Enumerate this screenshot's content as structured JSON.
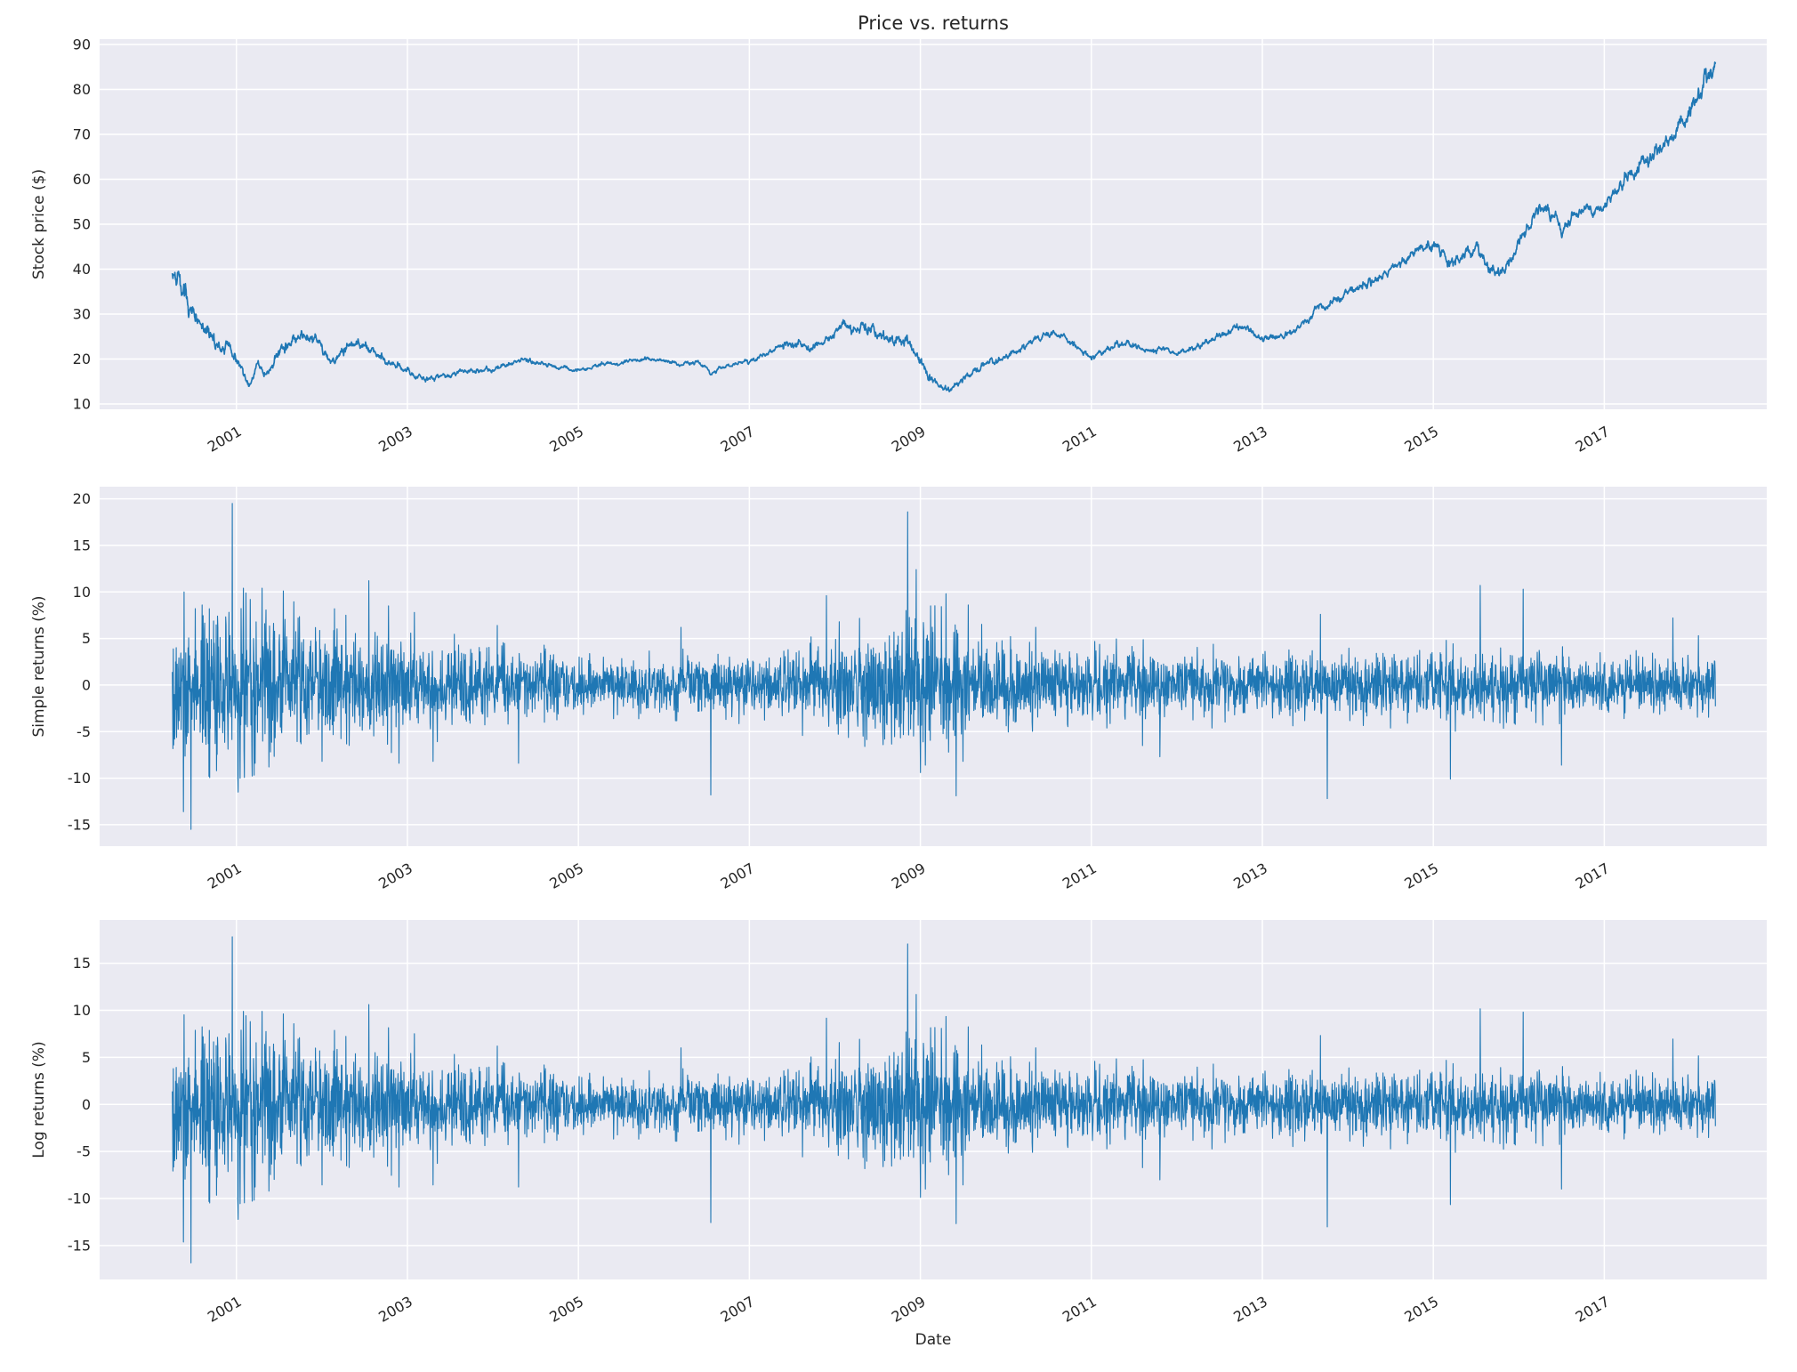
{
  "figure": {
    "title": "Price vs. returns",
    "xlabel": "Date",
    "colors": {
      "figure_background": "#ffffff",
      "axes_background": "#eaeaf2",
      "grid": "#ffffff",
      "line": "#1f77b4",
      "text": "#262626"
    }
  },
  "chart_data": [
    {
      "id": "price",
      "type": "line",
      "title": "Price vs. returns",
      "ylabel": "Stock price ($)",
      "xlim": [
        1999.4,
        2018.9
      ],
      "ylim": [
        8.8,
        91.2
      ],
      "x_ticks": [
        2001,
        2003,
        2005,
        2007,
        2009,
        2011,
        2013,
        2015,
        2017
      ],
      "x_tick_labels": [
        "2001",
        "2003",
        "2005",
        "2007",
        "2009",
        "2011",
        "2013",
        "2015",
        "2017"
      ],
      "x_tick_rotation": 30,
      "y_ticks": [
        10,
        20,
        30,
        40,
        50,
        60,
        70,
        80,
        90
      ],
      "grid": true,
      "legend": "none",
      "series": [
        {
          "name": "Stock price",
          "color": "#1f77b4",
          "anchors": [
            [
              2000.25,
              38.5
            ],
            [
              2000.35,
              35.5
            ],
            [
              2000.5,
              30
            ],
            [
              2000.6,
              26.5
            ],
            [
              2000.75,
              24.5
            ],
            [
              2000.9,
              22.5
            ],
            [
              2001.0,
              20.5
            ],
            [
              2001.1,
              15.5
            ],
            [
              2001.15,
              14
            ],
            [
              2001.25,
              18.5
            ],
            [
              2001.35,
              16.5
            ],
            [
              2001.45,
              20
            ],
            [
              2001.55,
              22.5
            ],
            [
              2001.7,
              24.5
            ],
            [
              2001.8,
              25
            ],
            [
              2001.95,
              23.5
            ],
            [
              2002.1,
              18.5
            ],
            [
              2002.2,
              21
            ],
            [
              2002.3,
              23
            ],
            [
              2002.45,
              23.5
            ],
            [
              2002.6,
              21.5
            ],
            [
              2002.75,
              19
            ],
            [
              2002.9,
              18.5
            ],
            [
              2003.0,
              17
            ],
            [
              2003.2,
              15.5
            ],
            [
              2003.4,
              16
            ],
            [
              2003.6,
              17
            ],
            [
              2003.8,
              17.5
            ],
            [
              2004.0,
              17.5
            ],
            [
              2004.2,
              19
            ],
            [
              2004.4,
              20
            ],
            [
              2004.6,
              19
            ],
            [
              2004.8,
              18
            ],
            [
              2005.0,
              17.5
            ],
            [
              2005.2,
              18.5
            ],
            [
              2005.4,
              19
            ],
            [
              2005.6,
              19.5
            ],
            [
              2005.8,
              20
            ],
            [
              2006.0,
              19.5
            ],
            [
              2006.2,
              18.5
            ],
            [
              2006.4,
              19.5
            ],
            [
              2006.55,
              17
            ],
            [
              2006.7,
              18
            ],
            [
              2006.85,
              19
            ],
            [
              2007.0,
              19.5
            ],
            [
              2007.2,
              21
            ],
            [
              2007.4,
              23
            ],
            [
              2007.55,
              23.5
            ],
            [
              2007.7,
              22.5
            ],
            [
              2007.85,
              24
            ],
            [
              2008.0,
              25.5
            ],
            [
              2008.1,
              28.5
            ],
            [
              2008.25,
              26
            ],
            [
              2008.4,
              27.5
            ],
            [
              2008.55,
              25
            ],
            [
              2008.7,
              24.5
            ],
            [
              2008.85,
              23.5
            ],
            [
              2009.0,
              19.5
            ],
            [
              2009.1,
              16
            ],
            [
              2009.25,
              14
            ],
            [
              2009.35,
              13
            ],
            [
              2009.5,
              15.5
            ],
            [
              2009.65,
              17.5
            ],
            [
              2009.8,
              19
            ],
            [
              2010.0,
              20.5
            ],
            [
              2010.2,
              22.5
            ],
            [
              2010.4,
              25
            ],
            [
              2010.55,
              26
            ],
            [
              2010.7,
              24.5
            ],
            [
              2010.85,
              22.5
            ],
            [
              2011.0,
              20.5
            ],
            [
              2011.2,
              22.5
            ],
            [
              2011.4,
              23.5
            ],
            [
              2011.55,
              22.5
            ],
            [
              2011.7,
              21.5
            ],
            [
              2011.85,
              22.5
            ],
            [
              2012.0,
              21
            ],
            [
              2012.2,
              22.5
            ],
            [
              2012.4,
              24
            ],
            [
              2012.55,
              25.5
            ],
            [
              2012.7,
              27
            ],
            [
              2012.85,
              26.5
            ],
            [
              2013.0,
              24.5
            ],
            [
              2013.2,
              25
            ],
            [
              2013.4,
              26.5
            ],
            [
              2013.55,
              29
            ],
            [
              2013.65,
              32
            ],
            [
              2013.75,
              31.5
            ],
            [
              2013.85,
              33
            ],
            [
              2014.0,
              34.5
            ],
            [
              2014.2,
              36.5
            ],
            [
              2014.4,
              38.5
            ],
            [
              2014.6,
              41
            ],
            [
              2014.8,
              43.5
            ],
            [
              2015.0,
              46
            ],
            [
              2015.1,
              44
            ],
            [
              2015.2,
              40.5
            ],
            [
              2015.35,
              43.5
            ],
            [
              2015.5,
              45
            ],
            [
              2015.65,
              40
            ],
            [
              2015.8,
              38.5
            ],
            [
              2015.95,
              44
            ],
            [
              2016.1,
              49
            ],
            [
              2016.25,
              53.5
            ],
            [
              2016.4,
              52
            ],
            [
              2016.5,
              48.5
            ],
            [
              2016.65,
              52
            ],
            [
              2016.8,
              53.5
            ],
            [
              2016.95,
              52.5
            ],
            [
              2017.1,
              56.5
            ],
            [
              2017.25,
              60
            ],
            [
              2017.4,
              62.5
            ],
            [
              2017.55,
              65
            ],
            [
              2017.7,
              67.5
            ],
            [
              2017.85,
              70.5
            ],
            [
              2018.0,
              75
            ],
            [
              2018.1,
              79
            ],
            [
              2018.2,
              83
            ],
            [
              2018.3,
              86.5
            ]
          ]
        }
      ]
    },
    {
      "id": "simple_returns",
      "type": "line",
      "ylabel": "Simple returns (%)",
      "xlim": [
        1999.4,
        2018.9
      ],
      "ylim": [
        -17.3,
        21.3
      ],
      "x_ticks": [
        2001,
        2003,
        2005,
        2007,
        2009,
        2011,
        2013,
        2015,
        2017
      ],
      "x_tick_labels": [
        "2001",
        "2003",
        "2005",
        "2007",
        "2009",
        "2011",
        "2013",
        "2015",
        "2017"
      ],
      "x_tick_rotation": 30,
      "y_ticks": [
        -15,
        -10,
        -5,
        0,
        5,
        10,
        15,
        20
      ],
      "grid": true,
      "legend": "none",
      "series_model": {
        "kind": "daily_returns_noise",
        "color": "#1f77b4",
        "x_start": 2000.25,
        "x_end": 2018.3,
        "points_per_year": 261,
        "volatility_anchors": [
          [
            2000.25,
            3.9
          ],
          [
            2001.0,
            3.6
          ],
          [
            2002.0,
            3.0
          ],
          [
            2003.0,
            2.5
          ],
          [
            2004.0,
            1.8
          ],
          [
            2005.0,
            1.35
          ],
          [
            2006.0,
            1.35
          ],
          [
            2007.0,
            1.5
          ],
          [
            2008.0,
            2.2
          ],
          [
            2008.8,
            3.2
          ],
          [
            2009.5,
            2.9
          ],
          [
            2010.0,
            1.9
          ],
          [
            2011.0,
            1.8
          ],
          [
            2012.0,
            1.7
          ],
          [
            2013.0,
            1.6
          ],
          [
            2014.0,
            1.5
          ],
          [
            2015.0,
            1.8
          ],
          [
            2016.0,
            1.7
          ],
          [
            2017.0,
            1.25
          ],
          [
            2018.3,
            1.5
          ]
        ],
        "spikes": [
          [
            2000.38,
            -13.6
          ],
          [
            2000.47,
            -15.5
          ],
          [
            2000.52,
            8.2
          ],
          [
            2000.6,
            8.6
          ],
          [
            2000.68,
            -9.8
          ],
          [
            2000.78,
            7.4
          ],
          [
            2000.95,
            19.5
          ],
          [
            2001.02,
            -11.5
          ],
          [
            2001.08,
            10.4
          ],
          [
            2001.16,
            9.2
          ],
          [
            2001.22,
            -8.4
          ],
          [
            2001.3,
            10.4
          ],
          [
            2001.38,
            -8.8
          ],
          [
            2001.55,
            10.1
          ],
          [
            2001.72,
            7.2
          ],
          [
            2002.0,
            -8.2
          ],
          [
            2002.28,
            7.5
          ],
          [
            2002.55,
            11.2
          ],
          [
            2002.78,
            8.5
          ],
          [
            2002.9,
            -8.4
          ],
          [
            2003.08,
            7.8
          ],
          [
            2003.3,
            -8.2
          ],
          [
            2004.05,
            6.4
          ],
          [
            2004.3,
            -8.4
          ],
          [
            2006.2,
            6.2
          ],
          [
            2006.55,
            -11.8
          ],
          [
            2007.9,
            9.6
          ],
          [
            2008.05,
            6.8
          ],
          [
            2008.35,
            -6.6
          ],
          [
            2008.85,
            18.6
          ],
          [
            2008.95,
            12.4
          ],
          [
            2009.0,
            -9.4
          ],
          [
            2009.06,
            -8.6
          ],
          [
            2009.12,
            8.5
          ],
          [
            2009.3,
            9.8
          ],
          [
            2009.42,
            -11.9
          ],
          [
            2009.5,
            -8.2
          ],
          [
            2009.56,
            8.6
          ],
          [
            2010.35,
            6.2
          ],
          [
            2011.6,
            -6.5
          ],
          [
            2011.8,
            -7.7
          ],
          [
            2013.68,
            7.6
          ],
          [
            2013.76,
            -12.2
          ],
          [
            2015.2,
            -10.1
          ],
          [
            2015.55,
            10.7
          ],
          [
            2016.05,
            10.3
          ],
          [
            2016.5,
            -8.6
          ],
          [
            2017.8,
            7.2
          ],
          [
            2018.1,
            5.3
          ]
        ]
      }
    },
    {
      "id": "log_returns",
      "type": "line",
      "ylabel": "Log returns (%)",
      "xlabel": "Date",
      "xlim": [
        1999.4,
        2018.9
      ],
      "ylim": [
        -18.6,
        19.6
      ],
      "x_ticks": [
        2001,
        2003,
        2005,
        2007,
        2009,
        2011,
        2013,
        2015,
        2017
      ],
      "x_tick_labels": [
        "2001",
        "2003",
        "2005",
        "2007",
        "2009",
        "2011",
        "2013",
        "2015",
        "2017"
      ],
      "x_tick_rotation": 30,
      "y_ticks": [
        -15,
        -10,
        -5,
        0,
        5,
        10,
        15
      ],
      "grid": true,
      "legend": "none",
      "derived": {
        "from": "simple_returns",
        "transform": "log1p_percent",
        "color": "#1f77b4"
      }
    }
  ]
}
